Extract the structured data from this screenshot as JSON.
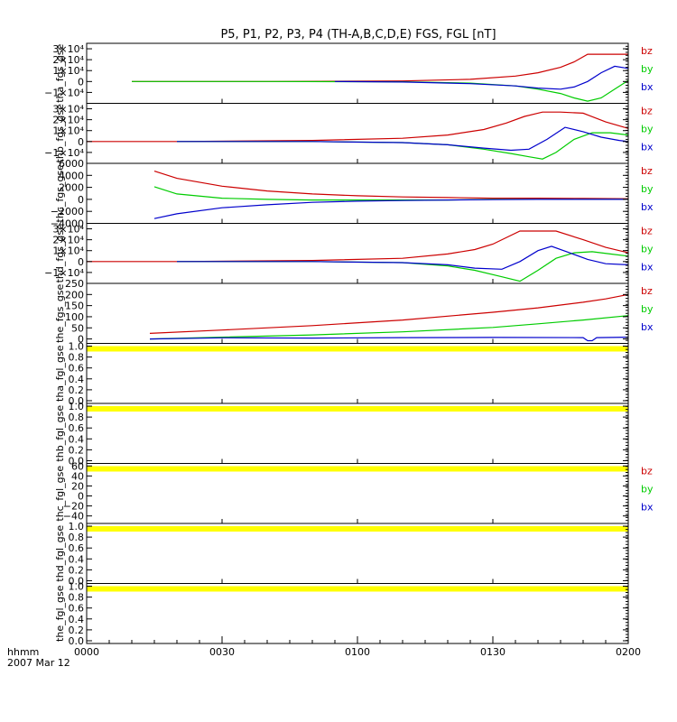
{
  "title": "P5, P1, P2, P3, P4 (TH-A,B,C,D,E) FGS, FGL [nT]",
  "time_axis": {
    "row1_label": "hhmm",
    "row2_label": "2007 Mar 12",
    "ticks": [
      "0000",
      "0030",
      "0100",
      "0130",
      "0200"
    ],
    "tick_minutes": [
      0,
      30,
      60,
      90,
      120
    ],
    "range_minutes": [
      0,
      120
    ]
  },
  "colors": {
    "bz": "#cc0000",
    "by": "#00cc00",
    "bx": "#0000cc",
    "missing": "#ffff00",
    "axis": "#000000"
  },
  "chart_data": [
    {
      "type": "line",
      "ylabel": "tha_fgs_gse",
      "ylim": [
        -20000,
        35000
      ],
      "ytick_values": [
        -10000,
        0,
        10000,
        20000,
        30000
      ],
      "ytick_labels": [
        "−1×10⁴",
        "0",
        "1×10⁴",
        "2×10⁴",
        "3×10⁴"
      ],
      "legend": [
        "bz",
        "by",
        "bx"
      ],
      "series": [
        {
          "name": "bz",
          "x": [
            10,
            40,
            70,
            85,
            95,
            100,
            105,
            108,
            111,
            114,
            120
          ],
          "values": [
            0,
            0,
            500,
            2000,
            5000,
            8000,
            13000,
            18000,
            25000,
            25000,
            25000
          ]
        },
        {
          "name": "by",
          "x": [
            10,
            40,
            70,
            85,
            95,
            100,
            105,
            108,
            111,
            114,
            117,
            120
          ],
          "values": [
            0,
            0,
            -200,
            -1500,
            -4000,
            -7000,
            -11000,
            -15000,
            -18000,
            -15000,
            -7000,
            1000
          ]
        },
        {
          "name": "bx",
          "x": [
            55,
            70,
            85,
            95,
            100,
            105,
            108,
            111,
            114,
            117,
            120
          ],
          "values": [
            0,
            -500,
            -2000,
            -4000,
            -6000,
            -7000,
            -5000,
            0,
            8000,
            14000,
            12000
          ]
        }
      ]
    },
    {
      "type": "line",
      "ylabel": "thb_fgs_gse",
      "ylim": [
        -20000,
        35000
      ],
      "ytick_values": [
        -10000,
        0,
        10000,
        20000,
        30000
      ],
      "ytick_labels": [
        "−1×10⁴",
        "0",
        "1×10⁴",
        "2×10⁴",
        "3×10⁴"
      ],
      "legend": [
        "bz",
        "by",
        "bx"
      ],
      "series": [
        {
          "name": "bz",
          "x": [
            0,
            20,
            50,
            70,
            80,
            88,
            93,
            97,
            101,
            105,
            110,
            115,
            120
          ],
          "values": [
            0,
            0,
            1000,
            3000,
            6000,
            11000,
            17000,
            23000,
            27000,
            27000,
            26000,
            18000,
            12000
          ]
        },
        {
          "name": "by",
          "x": [
            20,
            50,
            70,
            80,
            88,
            94,
            98,
            101,
            104,
            108,
            112,
            116,
            120
          ],
          "values": [
            0,
            0,
            -1000,
            -3000,
            -7000,
            -11000,
            -14000,
            -16000,
            -10000,
            2000,
            8000,
            8000,
            6000
          ]
        },
        {
          "name": "bx",
          "x": [
            20,
            50,
            70,
            80,
            88,
            94,
            98,
            102,
            106,
            110,
            114,
            118,
            120
          ],
          "values": [
            0,
            0,
            -1000,
            -3000,
            -6000,
            -8000,
            -7000,
            2000,
            13000,
            9000,
            4000,
            1000,
            0
          ]
        }
      ]
    },
    {
      "type": "line",
      "ylabel": "thc_fgs_gse",
      "ylim": [
        -4000,
        6000
      ],
      "ytick_values": [
        -4000,
        -2000,
        0,
        2000,
        4000,
        6000
      ],
      "ytick_labels": [
        "−4000",
        "−2000",
        "0",
        "2000",
        "4000",
        "6000"
      ],
      "legend": [
        "bz",
        "by",
        "bx"
      ],
      "series": [
        {
          "name": "bz",
          "x": [
            15,
            20,
            30,
            40,
            50,
            60,
            70,
            80,
            90,
            100,
            110,
            120
          ],
          "values": [
            4700,
            3500,
            2200,
            1400,
            900,
            600,
            400,
            300,
            200,
            200,
            150,
            100
          ]
        },
        {
          "name": "by",
          "x": [
            15,
            20,
            30,
            40,
            50,
            60,
            70,
            80,
            90,
            100,
            110,
            120
          ],
          "values": [
            2100,
            900,
            200,
            0,
            -100,
            -100,
            -100,
            -100,
            0,
            0,
            0,
            0
          ]
        },
        {
          "name": "bx",
          "x": [
            15,
            20,
            30,
            40,
            50,
            60,
            70,
            80,
            90,
            100,
            110,
            120
          ],
          "values": [
            -3200,
            -2400,
            -1400,
            -900,
            -500,
            -300,
            -200,
            -100,
            -50,
            0,
            0,
            0
          ]
        }
      ]
    },
    {
      "type": "line",
      "ylabel": "thd_fgs_gse",
      "ylim": [
        -20000,
        35000
      ],
      "ytick_values": [
        -10000,
        0,
        10000,
        20000,
        30000
      ],
      "ytick_labels": [
        "−1×10⁴",
        "0",
        "1×10⁴",
        "2×10⁴",
        "3×10⁴"
      ],
      "legend": [
        "bz",
        "by",
        "bx"
      ],
      "series": [
        {
          "name": "bz",
          "x": [
            0,
            20,
            50,
            70,
            80,
            86,
            90,
            96,
            104,
            110,
            115,
            120
          ],
          "values": [
            0,
            0,
            1000,
            3000,
            7000,
            11000,
            16000,
            28000,
            28000,
            20000,
            13000,
            8000
          ]
        },
        {
          "name": "by",
          "x": [
            20,
            50,
            70,
            80,
            86,
            92,
            96,
            100,
            104,
            108,
            112,
            116,
            120
          ],
          "values": [
            0,
            0,
            -1000,
            -4000,
            -8000,
            -14000,
            -18000,
            -8000,
            3000,
            8000,
            9000,
            7000,
            5000
          ]
        },
        {
          "name": "bx",
          "x": [
            20,
            50,
            70,
            80,
            86,
            92,
            96,
            100,
            103,
            107,
            111,
            115,
            120
          ],
          "values": [
            0,
            0,
            -1000,
            -3000,
            -6000,
            -7000,
            0,
            10000,
            14000,
            8000,
            2000,
            -2000,
            -3000
          ]
        }
      ]
    },
    {
      "type": "line",
      "ylabel": "the_fgs_gse",
      "ylim": [
        -20,
        250
      ],
      "ytick_values": [
        0,
        50,
        100,
        150,
        200,
        250
      ],
      "ytick_labels": [
        "0",
        "50",
        "100",
        "150",
        "200",
        "250"
      ],
      "legend": [
        "bz",
        "by",
        "bx"
      ],
      "series": [
        {
          "name": "bz",
          "x": [
            14,
            30,
            50,
            70,
            90,
            100,
            110,
            115,
            120
          ],
          "values": [
            25,
            40,
            60,
            85,
            120,
            140,
            165,
            180,
            200
          ]
        },
        {
          "name": "by",
          "x": [
            14,
            30,
            50,
            70,
            90,
            100,
            110,
            120
          ],
          "values": [
            0,
            8,
            18,
            32,
            52,
            68,
            85,
            105
          ]
        },
        {
          "name": "bx",
          "x": [
            14,
            30,
            50,
            70,
            90,
            110,
            111,
            112,
            113,
            120
          ],
          "values": [
            0,
            5,
            4,
            6,
            7,
            6,
            -8,
            -8,
            6,
            8
          ]
        }
      ]
    },
    {
      "type": "line",
      "ylabel": "tha_fgl_gse",
      "ylim": [
        -0.05,
        1.05
      ],
      "ytick_values": [
        0.0,
        0.2,
        0.4,
        0.6,
        0.8,
        1.0
      ],
      "ytick_labels": [
        "0.0",
        "0.2",
        "0.4",
        "0.6",
        "0.8",
        "1.0"
      ],
      "legend": [],
      "series": [],
      "missing_band": [
        0,
        120
      ]
    },
    {
      "type": "line",
      "ylabel": "thb_fgl_gse",
      "ylim": [
        -0.05,
        1.05
      ],
      "ytick_values": [
        0.0,
        0.2,
        0.4,
        0.6,
        0.8,
        1.0
      ],
      "ytick_labels": [
        "0.0",
        "0.2",
        "0.4",
        "0.6",
        "0.8",
        "1.0"
      ],
      "legend": [],
      "series": [],
      "missing_band": [
        0,
        120
      ]
    },
    {
      "type": "line",
      "ylabel": "thc_fgl_gse",
      "ylim": [
        -55,
        65
      ],
      "ytick_values": [
        -40,
        -20,
        0,
        20,
        40,
        60
      ],
      "ytick_labels": [
        "−40",
        "−20",
        "0",
        "20",
        "40",
        "60"
      ],
      "legend": [
        "bz",
        "by",
        "bx"
      ],
      "series": [],
      "missing_band": [
        0,
        120
      ]
    },
    {
      "type": "line",
      "ylabel": "thd_fgl_gse",
      "ylim": [
        -0.05,
        1.05
      ],
      "ytick_values": [
        0.0,
        0.2,
        0.4,
        0.6,
        0.8,
        1.0
      ],
      "ytick_labels": [
        "0.0",
        "0.2",
        "0.4",
        "0.6",
        "0.8",
        "1.0"
      ],
      "legend": [],
      "series": [],
      "missing_band": [
        0,
        120
      ]
    },
    {
      "type": "line",
      "ylabel": "the_fgl_gse",
      "ylim": [
        -0.05,
        1.05
      ],
      "ytick_values": [
        0.0,
        0.2,
        0.4,
        0.6,
        0.8,
        1.0
      ],
      "ytick_labels": [
        "0.0",
        "0.2",
        "0.4",
        "0.6",
        "0.8",
        "1.0"
      ],
      "legend": [],
      "series": [],
      "missing_band": [
        0,
        120
      ]
    }
  ]
}
